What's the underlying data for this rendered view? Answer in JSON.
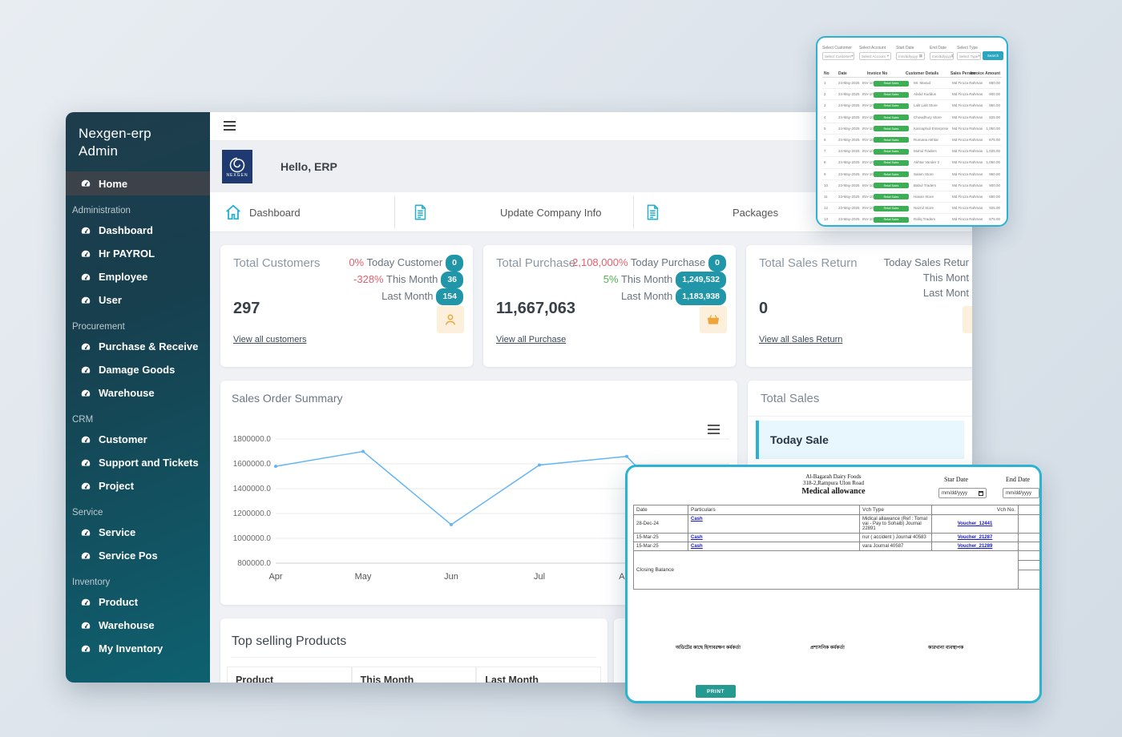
{
  "colors": {
    "accent": "#2bb3d4",
    "badge_teal": "#2196a8",
    "icon_orange": "#f0a53a",
    "chart_line": "#64b5f6",
    "negative_red": "#e4606d",
    "positive_green": "#52b152",
    "print_button": "#259a91",
    "sidebar_active_bg": "#3c424a",
    "mini_badge_green": "#3dae54"
  },
  "sidebar": {
    "title_line1": "Nexgen-erp",
    "title_line2": "Admin",
    "active_item": "Home",
    "sections": [
      {
        "label": "Administration",
        "items": [
          "Dashboard",
          "Hr PAYROL",
          "Employee",
          "User"
        ]
      },
      {
        "label": "Procurement",
        "items": [
          "Purchase & Receive",
          "Damage Goods",
          "Warehouse"
        ]
      },
      {
        "label": "CRM",
        "items": [
          "Customer",
          "Support and Tickets",
          "Project"
        ]
      },
      {
        "label": "Service",
        "items": [
          "Service",
          "Service Pos"
        ]
      },
      {
        "label": "Inventory",
        "items": [
          "Product",
          "Warehouse",
          "My Inventory"
        ]
      }
    ]
  },
  "header": {
    "greeting": "Hello, ERP",
    "logo_caption": "NEXGEN"
  },
  "nav": {
    "items": [
      {
        "label": "Dashboard",
        "icon": "home-icon"
      },
      {
        "label": "Update Company Info",
        "icon": "document-icon"
      },
      {
        "label": "Packages",
        "icon": "document-icon"
      }
    ]
  },
  "stat_cards": [
    {
      "title": "Total Customers",
      "rows": [
        {
          "pct": "0%",
          "pct_tone": "red",
          "label": "Today Customer",
          "badge": "0"
        },
        {
          "pct": "-328%",
          "pct_tone": "red",
          "label": "This Month",
          "badge": "36"
        },
        {
          "pct": "",
          "pct_tone": "",
          "label": "Last Month",
          "badge": "154"
        }
      ],
      "value": "297",
      "link": "View all customers",
      "icon": "person-icon"
    },
    {
      "title": "Total Purchase",
      "rows": [
        {
          "pct": "-2,108,000%",
          "pct_tone": "red",
          "label": "Today Purchase",
          "badge": "0"
        },
        {
          "pct": "5%",
          "pct_tone": "green",
          "label": "This Month",
          "badge": "1,249,532"
        },
        {
          "pct": "",
          "pct_tone": "",
          "label": "Last Month",
          "badge": "1,183,938"
        }
      ],
      "value": "11,667,063",
      "link": "View all Purchase",
      "icon": "basket-icon"
    },
    {
      "title": "Total Sales Return",
      "rows": [
        {
          "pct": "",
          "pct_tone": "",
          "label": "Today Sales Retur",
          "badge": ""
        },
        {
          "pct": "",
          "pct_tone": "",
          "label": "This Mont",
          "badge": ""
        },
        {
          "pct": "",
          "pct_tone": "",
          "label": "Last Mont",
          "badge": ""
        }
      ],
      "value": "0",
      "link": "View all Sales Return",
      "icon": "none"
    }
  ],
  "chart_data": {
    "type": "line",
    "title": "Sales Order Summary",
    "x": [
      "Apr",
      "May",
      "Jun",
      "Jul",
      "Aug"
    ],
    "values": [
      1580000,
      1700000,
      1110000,
      1590000,
      1660000
    ],
    "ylim": [
      800000,
      1800000
    ],
    "ytick_labels": [
      "1800000.0",
      "1600000.0",
      "1400000.0",
      "1200000.0",
      "1000000.0",
      "800000.0"
    ],
    "xlabel": "",
    "ylabel": "",
    "grid": true,
    "legend": "none",
    "line_color": "#64b5f6"
  },
  "total_sales": {
    "title": "Total Sales",
    "today_row_label": "Today Sale"
  },
  "top_selling": {
    "title": "Top selling Products",
    "columns": [
      "Product",
      "This Month",
      "Last Month"
    ]
  },
  "mini_report": {
    "filters": [
      {
        "label": "Select Customer",
        "value": "Select Customer",
        "type": "select"
      },
      {
        "label": "Select Account",
        "value": "Select Account",
        "type": "select"
      },
      {
        "label": "Start Date",
        "value": "mm/dd/yyyy",
        "type": "date"
      },
      {
        "label": "End Date",
        "value": "mm/dd/yyyy",
        "type": "date"
      },
      {
        "label": "Select Type",
        "value": "Select Type",
        "type": "select"
      }
    ],
    "search_label": "Search",
    "columns": [
      "No",
      "Date",
      "Invoice No",
      "Customer Details",
      "Sales Person",
      "Invoice Amount"
    ],
    "badge_label": "Retail Sales",
    "rows": [
      [
        "1",
        "24-May-2025",
        "INV-1021",
        "Mr. Masud",
        "Md Firoza Rahman",
        "850.00"
      ],
      [
        "2",
        "24-May-2025",
        "INV-1022",
        "Abdul Kuddus",
        "Md Firoza Rahman",
        "900.00"
      ],
      [
        "3",
        "24-May-2025",
        "INV-1023",
        "Lalit Lalit Store",
        "Md Firoza Rahman",
        "950.00"
      ],
      [
        "4",
        "24-May-2025",
        "INV-1024",
        "Chowdhury Store",
        "Md Firoza Rahman",
        "825.00"
      ],
      [
        "5",
        "24-May-2025",
        "INV-1025",
        "Karnaphuli Enterprise",
        "Md Firoza Rahman",
        "1,050.00"
      ],
      [
        "6",
        "24-May-2025",
        "INV-1026",
        "Rumana Akhtar",
        "Md Firoza Rahman",
        "875.00"
      ],
      [
        "7",
        "24-May-2025",
        "INV-1027",
        "Mohul Traders",
        "Md Firoza Rahman",
        "1,025.00"
      ],
      [
        "8",
        "24-May-2025",
        "INV-1028",
        "Akhtar Vander 2",
        "Md Firoza Rahman",
        "1,050.00"
      ],
      [
        "9",
        "23-May-2025",
        "INV-1029",
        "Salam Store",
        "Md Firoza Rahman",
        "950.00"
      ],
      [
        "10",
        "23-May-2025",
        "INV-1030",
        "Babul Traders",
        "Md Firoza Rahman",
        "900.00"
      ],
      [
        "11",
        "23-May-2025",
        "INV-1031",
        "Hasan Store",
        "Md Firoza Rahman",
        "850.00"
      ],
      [
        "12",
        "23-May-2025",
        "INV-1032",
        "Nazrul Store",
        "Md Firoza Rahman",
        "925.00"
      ],
      [
        "13",
        "23-May-2025",
        "INV-1033",
        "Rafiq Traders",
        "Md Firoza Rahman",
        "875.00"
      ]
    ]
  },
  "voucher": {
    "company": "Al-Bagarah Dairy Foods",
    "address": "318-2,Rampura Ulon Road",
    "title": "Medical allowance",
    "start_date_label": "Star Date",
    "end_date_label": "End Date",
    "date_placeholder": "mm/dd/yyyy",
    "columns": [
      "Date",
      "Particulars",
      "Vch Type",
      "Vch No."
    ],
    "rows": [
      {
        "date": "28-Dec-24",
        "particulars": "Cash",
        "vch_type": "Midical allawance (Ref : Tomal vai - Pay to Sohaib) Journal 22891",
        "vch_no": "Voucher_12441"
      },
      {
        "date": "15-Mar-25",
        "particulars": "Cash",
        "vch_type": "nur ( accident ) Journal 40583",
        "vch_no": "Voucher_21287"
      },
      {
        "date": "15-Mar-25",
        "particulars": "Cash",
        "vch_type": "vara Journal 40587",
        "vch_no": "Voucher_21289"
      }
    ],
    "closing_balance_label": "Closing Balance",
    "signatures": [
      "অডিটের কাছে হিসাবরক্ষণ কর্মকর্তা",
      "প্রশাসনিক কর্মকর্তা",
      "কারখানা ব্যবস্থাপক"
    ],
    "print_label": "PRINT"
  }
}
